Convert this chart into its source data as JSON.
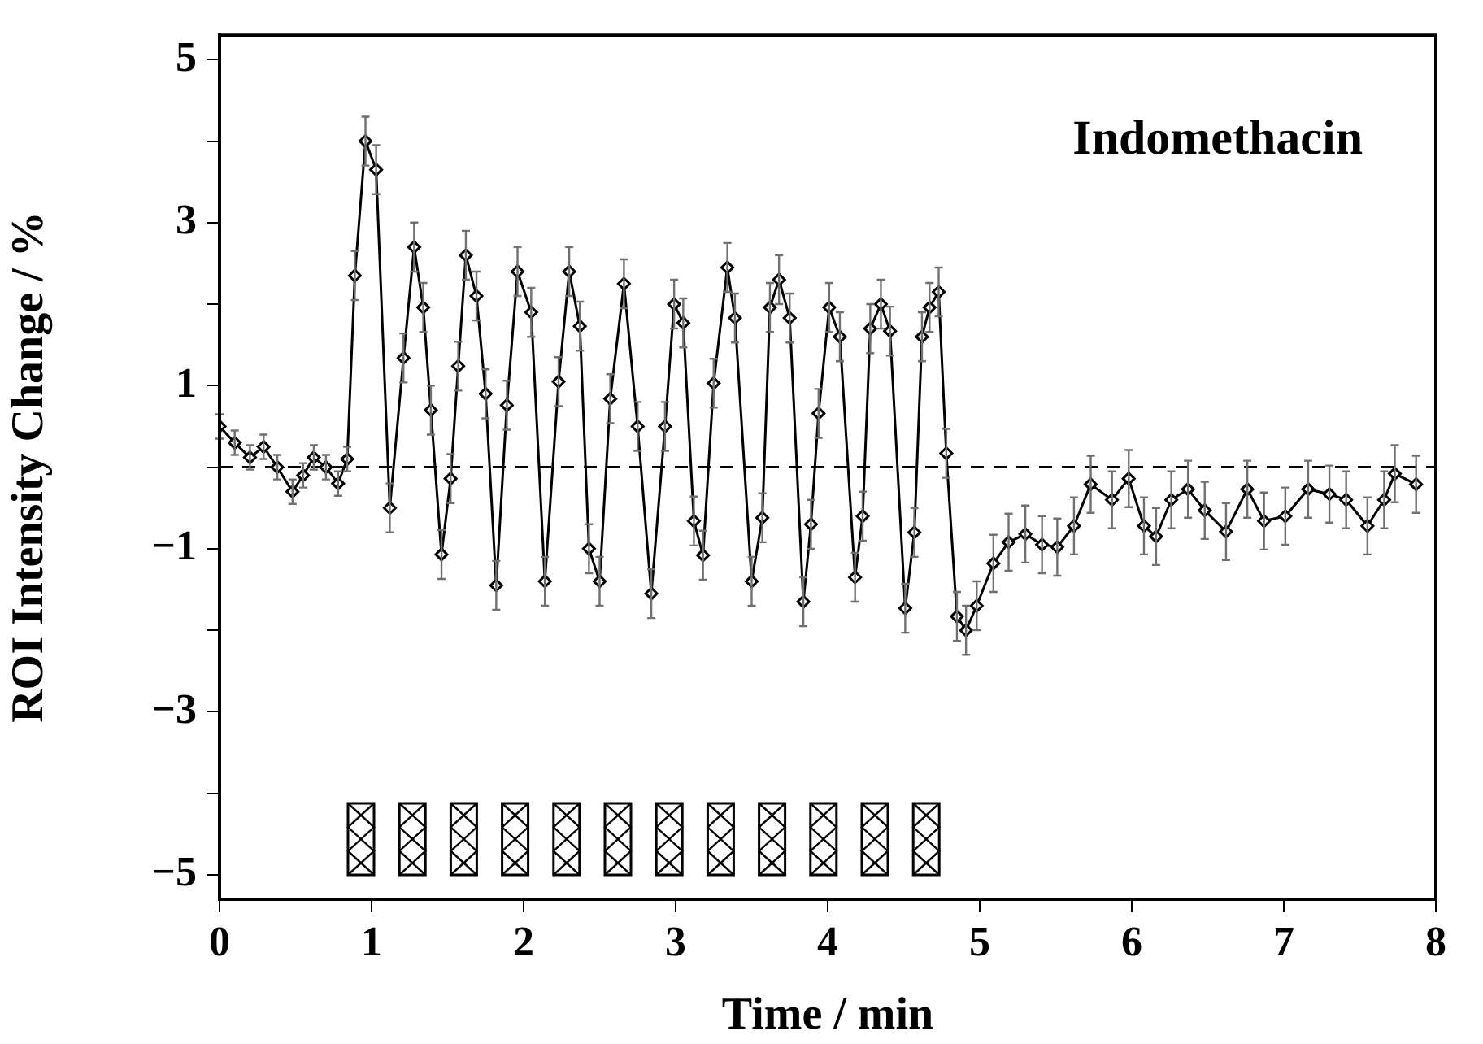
{
  "chart_data": {
    "type": "line",
    "xlabel": "Time / min",
    "ylabel": "ROI Intensity Change / %",
    "annotations": [
      "Indomethacin"
    ],
    "xlim": [
      0,
      8
    ],
    "xticks": [
      0,
      1,
      2,
      3,
      4,
      5,
      6,
      7,
      8
    ],
    "ylim": [
      -5.3,
      5.3
    ],
    "yticks": [
      {
        "value": -5,
        "label": "−5"
      },
      {
        "value": -4,
        "label": null
      },
      {
        "value": -3,
        "label": "−3"
      },
      {
        "value": -2,
        "label": null
      },
      {
        "value": -1,
        "label": "−1"
      },
      {
        "value": 0,
        "label": null
      },
      1,
      {
        "value": 2,
        "label": null
      },
      3,
      {
        "value": 4,
        "label": null
      },
      5
    ],
    "grid": false,
    "legend": false,
    "marker": "diamond",
    "line_style": "solid",
    "ref_lines": [
      {
        "axis": "y",
        "value": 0,
        "label": null,
        "color": "#000000",
        "line_style": "dashed"
      }
    ],
    "series": [
      {
        "color": "#000000",
        "x": [
          0,
          0.1,
          0.2,
          0.29,
          0.38,
          0.48,
          0.55,
          0.62,
          0.7,
          0.78,
          0.84,
          0.89,
          0.96,
          1.03,
          1.12,
          1.21,
          1.28,
          1.34,
          1.39,
          1.46,
          1.52,
          1.57,
          1.62,
          1.69,
          1.75,
          1.82,
          1.89,
          1.96,
          2.05,
          2.14,
          2.23,
          2.3,
          2.37,
          2.43,
          2.5,
          2.57,
          2.66,
          2.75,
          2.84,
          2.93,
          2.99,
          3.05,
          3.12,
          3.18,
          3.25,
          3.34,
          3.39,
          3.5,
          3.57,
          3.62,
          3.68,
          3.75,
          3.84,
          3.89,
          3.94,
          4.01,
          4.08,
          4.18,
          4.23,
          4.28,
          4.35,
          4.41,
          4.51,
          4.57,
          4.62,
          4.67,
          4.73,
          4.78,
          4.85,
          4.91,
          4.98,
          5.09,
          5.19,
          5.3,
          5.41,
          5.51,
          5.62,
          5.73,
          5.87,
          5.98,
          6.08,
          6.16,
          6.26,
          6.37,
          6.48,
          6.62,
          6.76,
          6.87,
          7.01,
          7.16,
          7.3,
          7.41,
          7.55,
          7.66,
          7.73,
          7.87
        ],
        "values": [
          0.5,
          0.3,
          0.12,
          0.25,
          0.0,
          -0.3,
          -0.1,
          0.12,
          0.0,
          -0.2,
          0.1,
          2.35,
          4.0,
          3.65,
          -0.5,
          1.34,
          2.7,
          1.96,
          0.7,
          -1.07,
          -0.14,
          1.24,
          2.6,
          2.1,
          0.9,
          -1.45,
          0.76,
          2.4,
          1.9,
          -1.4,
          1.05,
          2.4,
          1.73,
          -1.0,
          -1.4,
          0.84,
          2.25,
          0.5,
          -1.55,
          0.5,
          2.0,
          1.77,
          -0.66,
          -1.08,
          1.03,
          2.45,
          1.83,
          -1.4,
          -0.62,
          1.96,
          2.3,
          1.83,
          -1.65,
          -0.7,
          0.66,
          1.96,
          1.6,
          -1.35,
          -0.6,
          1.7,
          2.0,
          1.67,
          -1.73,
          -0.8,
          1.6,
          1.96,
          2.15,
          0.17,
          -1.83,
          -2.0,
          -1.7,
          -1.18,
          -0.92,
          -0.82,
          -0.95,
          -0.98,
          -0.72,
          -0.21,
          -0.4,
          -0.14,
          -0.72,
          -0.85,
          -0.4,
          -0.27,
          -0.53,
          -0.79,
          -0.27,
          -0.66,
          -0.6,
          -0.27,
          -0.33,
          -0.4,
          -0.72,
          -0.4,
          -0.08,
          -0.21
        ],
        "errors": [
          0.15,
          0.15,
          0.15,
          0.15,
          0.15,
          0.15,
          0.15,
          0.15,
          0.15,
          0.15,
          0.15,
          0.3,
          0.3,
          0.3,
          0.3,
          0.3,
          0.3,
          0.3,
          0.3,
          0.3,
          0.3,
          0.3,
          0.3,
          0.3,
          0.3,
          0.3,
          0.3,
          0.3,
          0.3,
          0.3,
          0.3,
          0.3,
          0.3,
          0.3,
          0.3,
          0.3,
          0.3,
          0.3,
          0.3,
          0.3,
          0.3,
          0.3,
          0.3,
          0.3,
          0.3,
          0.3,
          0.3,
          0.3,
          0.3,
          0.3,
          0.3,
          0.3,
          0.3,
          0.3,
          0.3,
          0.3,
          0.3,
          0.3,
          0.3,
          0.3,
          0.3,
          0.3,
          0.3,
          0.3,
          0.3,
          0.3,
          0.3,
          0.3,
          0.3,
          0.3,
          0.3,
          0.35,
          0.35,
          0.35,
          0.35,
          0.35,
          0.35,
          0.35,
          0.35,
          0.35,
          0.35,
          0.35,
          0.35,
          0.35,
          0.35,
          0.35,
          0.35,
          0.35,
          0.35,
          0.35,
          0.35,
          0.35,
          0.35,
          0.35,
          0.35,
          0.35
        ]
      }
    ]
  }
}
